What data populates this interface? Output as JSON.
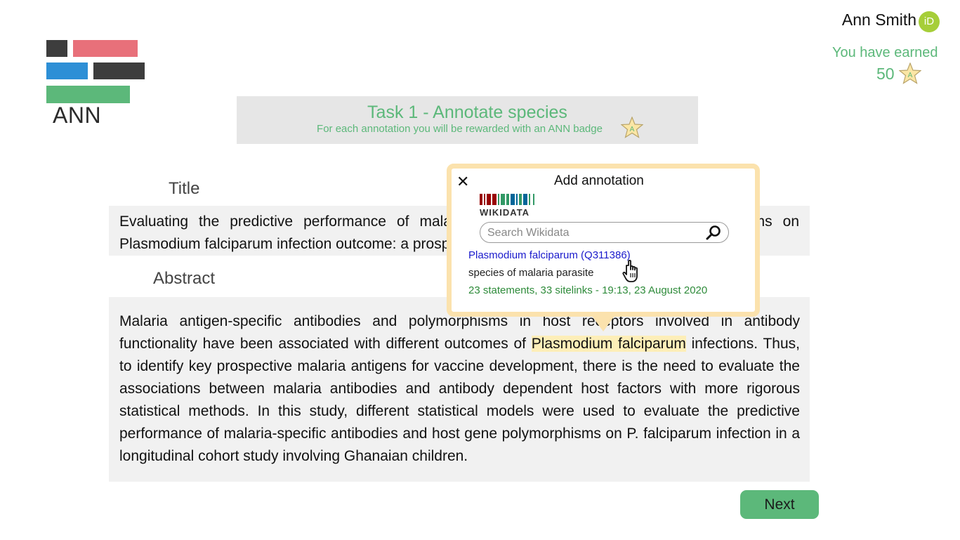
{
  "app": {
    "logo_text": "ANN",
    "colors": {
      "accent_green": "#5cb87a",
      "logo_red": "#e8707a",
      "logo_blue": "#2d8fd6",
      "logo_dark": "#3d3d3d",
      "highlight": "#fdeeb8",
      "popup_border": "#fbe2ad"
    }
  },
  "user": {
    "name": "Ann Smith",
    "id_icon": "iD",
    "earned_label": "You have earned",
    "earned_count": "50",
    "badge_letter": "A"
  },
  "task": {
    "title": "Task 1 - Annotate species",
    "subtitle": "For each annotation you will be rewarded with an ANN badge",
    "badge_letter": "A"
  },
  "article": {
    "title_heading": "Title",
    "title_text": "Evaluating the predictive performance of malaria antibodies and host gene polymorphisms on Plasmodium falciparum infection outcome: a prospective cohort study",
    "abstract_heading": "Abstract",
    "abstract_before": "Malaria antigen-specific antibodies and polymorphisms in host receptors involved in antibody functionality have been associated with different outcomes of ",
    "abstract_highlight": "Plasmodium falciparum",
    "abstract_after": " infections. Thus, to identify key prospective malaria antigens for vaccine development, there is the need to evaluate the associations between malaria antibodies and antibody dependent host factors with more rigorous statistical methods. In this study, different statistical models were used to evaluate the predictive performance of malaria-specific antibodies and host gene polymorphisms on P. falciparum infection in a longitudinal cohort study involving Ghanaian children."
  },
  "popup": {
    "title": "Add annotation",
    "close_icon": "close-icon",
    "wikidata_word": "WIKIDATA",
    "search_placeholder": "Search Wikidata",
    "result_title": "Plasmodium falciparum (Q311386)",
    "result_desc": "species of malaria parasite",
    "result_meta": "23 statements, 33 sitelinks - 19:13, 23 August 2020"
  },
  "footer": {
    "next_label": "Next"
  }
}
